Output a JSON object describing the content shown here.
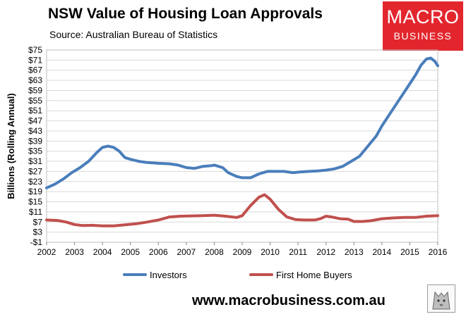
{
  "header": {
    "title": "NSW Value of Housing Loan Approvals",
    "subtitle": "Source: Australian Bureau of Statistics"
  },
  "logo": {
    "line1": "MACRO",
    "line2": "BUSINESS",
    "color": "#e3262d"
  },
  "footer": {
    "url": "www.macrobusiness.com.au"
  },
  "chart_data": {
    "type": "line",
    "ylabel": "Billions (Rolling Annual)",
    "xlabel": "",
    "ylim": [
      -1,
      75
    ],
    "yticks": [
      "$75",
      "$71",
      "$67",
      "$63",
      "$59",
      "$55",
      "$51",
      "$47",
      "$43",
      "$39",
      "$35",
      "$31",
      "$27",
      "$23",
      "$19",
      "$15",
      "$11",
      "$7",
      "$3",
      "-$1"
    ],
    "xlim": [
      2002,
      2016
    ],
    "xticks": [
      "2002",
      "2003",
      "2004",
      "2005",
      "2006",
      "2007",
      "2008",
      "2009",
      "2010",
      "2011",
      "2012",
      "2013",
      "2014",
      "2015",
      "2016"
    ],
    "grid": true,
    "legend_position": "bottom",
    "series": [
      {
        "name": "Investors",
        "color": "#4a7ebb",
        "points": [
          [
            2002.0,
            20.5
          ],
          [
            2002.3,
            22.0
          ],
          [
            2002.6,
            24.0
          ],
          [
            2002.9,
            26.5
          ],
          [
            2003.2,
            28.5
          ],
          [
            2003.5,
            31.0
          ],
          [
            2003.8,
            34.5
          ],
          [
            2004.0,
            36.5
          ],
          [
            2004.2,
            37.0
          ],
          [
            2004.4,
            36.5
          ],
          [
            2004.6,
            35.0
          ],
          [
            2004.8,
            32.5
          ],
          [
            2005.0,
            31.8
          ],
          [
            2005.3,
            31.0
          ],
          [
            2005.6,
            30.5
          ],
          [
            2006.0,
            30.2
          ],
          [
            2006.4,
            30.0
          ],
          [
            2006.7,
            29.5
          ],
          [
            2007.0,
            28.5
          ],
          [
            2007.3,
            28.2
          ],
          [
            2007.6,
            29.0
          ],
          [
            2007.9,
            29.3
          ],
          [
            2008.0,
            29.5
          ],
          [
            2008.3,
            28.5
          ],
          [
            2008.5,
            26.5
          ],
          [
            2008.8,
            25.0
          ],
          [
            2009.0,
            24.5
          ],
          [
            2009.3,
            24.5
          ],
          [
            2009.6,
            26.0
          ],
          [
            2009.9,
            27.0
          ],
          [
            2010.2,
            27.0
          ],
          [
            2010.5,
            27.0
          ],
          [
            2010.8,
            26.5
          ],
          [
            2011.1,
            26.8
          ],
          [
            2011.4,
            27.0
          ],
          [
            2011.7,
            27.2
          ],
          [
            2012.0,
            27.5
          ],
          [
            2012.3,
            28.0
          ],
          [
            2012.6,
            29.0
          ],
          [
            2012.9,
            31.0
          ],
          [
            2013.2,
            33.0
          ],
          [
            2013.5,
            37.0
          ],
          [
            2013.8,
            41.0
          ],
          [
            2014.0,
            45.0
          ],
          [
            2014.3,
            50.0
          ],
          [
            2014.6,
            55.0
          ],
          [
            2014.9,
            60.0
          ],
          [
            2015.2,
            65.0
          ],
          [
            2015.4,
            69.0
          ],
          [
            2015.6,
            71.5
          ],
          [
            2015.75,
            71.8
          ],
          [
            2015.9,
            70.5
          ],
          [
            2016.0,
            68.8
          ]
        ]
      },
      {
        "name": "First Home Buyers",
        "color": "#c0504d",
        "points": [
          [
            2002.0,
            7.8
          ],
          [
            2002.4,
            7.6
          ],
          [
            2002.7,
            7.0
          ],
          [
            2003.0,
            6.0
          ],
          [
            2003.3,
            5.6
          ],
          [
            2003.6,
            5.7
          ],
          [
            2004.0,
            5.5
          ],
          [
            2004.4,
            5.5
          ],
          [
            2004.8,
            5.9
          ],
          [
            2005.2,
            6.3
          ],
          [
            2005.6,
            7.0
          ],
          [
            2006.0,
            7.8
          ],
          [
            2006.4,
            9.0
          ],
          [
            2006.8,
            9.3
          ],
          [
            2007.2,
            9.4
          ],
          [
            2007.6,
            9.5
          ],
          [
            2008.0,
            9.7
          ],
          [
            2008.4,
            9.3
          ],
          [
            2008.8,
            8.8
          ],
          [
            2009.0,
            9.5
          ],
          [
            2009.3,
            13.5
          ],
          [
            2009.6,
            16.8
          ],
          [
            2009.8,
            17.8
          ],
          [
            2010.0,
            16.0
          ],
          [
            2010.3,
            12.0
          ],
          [
            2010.6,
            9.0
          ],
          [
            2010.9,
            8.0
          ],
          [
            2011.2,
            7.8
          ],
          [
            2011.6,
            7.8
          ],
          [
            2011.8,
            8.3
          ],
          [
            2012.0,
            9.3
          ],
          [
            2012.2,
            9.0
          ],
          [
            2012.5,
            8.3
          ],
          [
            2012.8,
            8.1
          ],
          [
            2013.0,
            7.2
          ],
          [
            2013.3,
            7.2
          ],
          [
            2013.6,
            7.5
          ],
          [
            2014.0,
            8.3
          ],
          [
            2014.4,
            8.6
          ],
          [
            2014.8,
            8.8
          ],
          [
            2015.2,
            8.8
          ],
          [
            2015.6,
            9.3
          ],
          [
            2016.0,
            9.5
          ]
        ]
      }
    ]
  }
}
